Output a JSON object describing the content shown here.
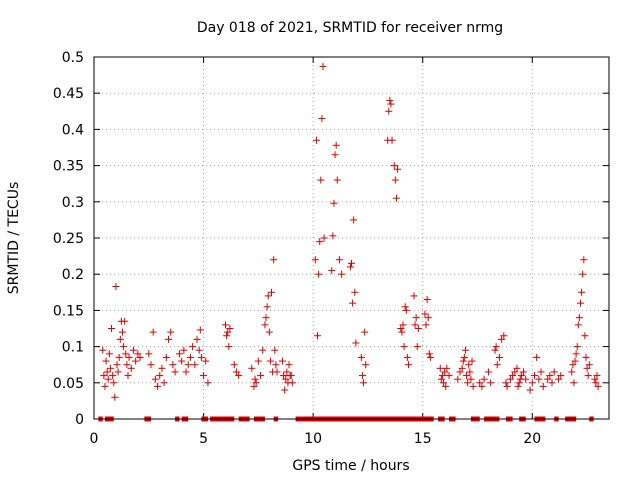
{
  "chart_data": {
    "type": "scatter",
    "title": "Day 018 of 2021, SRMTID for receiver nrmg",
    "xlabel": "GPS time / hours",
    "ylabel": "SRMTID / TECUs",
    "xlim": [
      0,
      23.5
    ],
    "ylim": [
      0,
      0.5
    ],
    "x_ticks": [
      0,
      5,
      10,
      15,
      20
    ],
    "x_tick_labels": [
      "0",
      "5",
      "10",
      "15",
      "20"
    ],
    "y_ticks": [
      0,
      0.05,
      0.1,
      0.15,
      0.2,
      0.25,
      0.3,
      0.35,
      0.4,
      0.45,
      0.5
    ],
    "y_tick_labels": [
      "0",
      "0.05",
      "0.1",
      "0.15",
      "0.2",
      "0.25",
      "0.3",
      "0.35",
      "0.4",
      "0.45",
      "0.5"
    ],
    "grid": true,
    "marker": "+",
    "marker_color": "#e00000",
    "series": [
      {
        "name": "SRMTID",
        "points": [
          [
            0.4,
            0.095
          ],
          [
            0.45,
            0.06
          ],
          [
            0.5,
            0.045
          ],
          [
            0.55,
            0.08
          ],
          [
            0.6,
            0.065
          ],
          [
            0.65,
            0.055
          ],
          [
            0.7,
            0.09
          ],
          [
            0.75,
            0.07
          ],
          [
            0.8,
            0.125
          ],
          [
            0.85,
            0.06
          ],
          [
            0.9,
            0.05
          ],
          [
            0.95,
            0.03
          ],
          [
            1.0,
            0.183
          ],
          [
            1.05,
            0.075
          ],
          [
            1.1,
            0.065
          ],
          [
            1.15,
            0.085
          ],
          [
            1.2,
            0.11
          ],
          [
            1.25,
            0.135
          ],
          [
            1.3,
            0.12
          ],
          [
            1.35,
            0.1
          ],
          [
            1.4,
            0.135
          ],
          [
            1.45,
            0.09
          ],
          [
            1.5,
            0.075
          ],
          [
            1.55,
            0.06
          ],
          [
            1.6,
            0.085
          ],
          [
            1.7,
            0.07
          ],
          [
            1.8,
            0.095
          ],
          [
            1.9,
            0.08
          ],
          [
            2.0,
            0.09
          ],
          [
            2.1,
            0.085
          ],
          [
            2.5,
            0.09
          ],
          [
            2.6,
            0.075
          ],
          [
            2.7,
            0.12
          ],
          [
            2.8,
            0.055
          ],
          [
            2.9,
            0.045
          ],
          [
            3.0,
            0.06
          ],
          [
            3.1,
            0.07
          ],
          [
            3.2,
            0.05
          ],
          [
            3.3,
            0.085
          ],
          [
            3.4,
            0.11
          ],
          [
            3.5,
            0.12
          ],
          [
            3.6,
            0.075
          ],
          [
            3.7,
            0.065
          ],
          [
            3.9,
            0.09
          ],
          [
            4.0,
            0.08
          ],
          [
            4.1,
            0.095
          ],
          [
            4.2,
            0.065
          ],
          [
            4.3,
            0.075
          ],
          [
            4.4,
            0.085
          ],
          [
            4.5,
            0.1
          ],
          [
            4.6,
            0.075
          ],
          [
            4.7,
            0.11
          ],
          [
            4.8,
            0.095
          ],
          [
            4.85,
            0.123
          ],
          [
            4.9,
            0.085
          ],
          [
            5.0,
            0.06
          ],
          [
            5.1,
            0.08
          ],
          [
            5.2,
            0.05
          ],
          [
            6.0,
            0.13
          ],
          [
            6.05,
            0.115
          ],
          [
            6.1,
            0.12
          ],
          [
            6.15,
            0.1
          ],
          [
            6.2,
            0.125
          ],
          [
            6.4,
            0.075
          ],
          [
            6.5,
            0.065
          ],
          [
            6.6,
            0.06
          ],
          [
            7.2,
            0.07
          ],
          [
            7.3,
            0.045
          ],
          [
            7.35,
            0.055
          ],
          [
            7.4,
            0.05
          ],
          [
            7.5,
            0.08
          ],
          [
            7.6,
            0.06
          ],
          [
            7.7,
            0.095
          ],
          [
            7.8,
            0.13
          ],
          [
            7.85,
            0.14
          ],
          [
            7.9,
            0.155
          ],
          [
            7.95,
            0.17
          ],
          [
            8.0,
            0.12
          ],
          [
            8.05,
            0.08
          ],
          [
            8.1,
            0.175
          ],
          [
            8.15,
            0.065
          ],
          [
            8.2,
            0.22
          ],
          [
            8.25,
            0.095
          ],
          [
            8.3,
            0.075
          ],
          [
            8.35,
            0.065
          ],
          [
            8.6,
            0.08
          ],
          [
            8.65,
            0.06
          ],
          [
            8.7,
            0.04
          ],
          [
            8.75,
            0.055
          ],
          [
            8.8,
            0.065
          ],
          [
            8.85,
            0.05
          ],
          [
            8.9,
            0.075
          ],
          [
            8.95,
            0.06
          ],
          [
            9.0,
            0.06
          ],
          [
            9.05,
            0.05
          ],
          [
            10.1,
            0.22
          ],
          [
            10.15,
            0.385
          ],
          [
            10.2,
            0.115
          ],
          [
            10.25,
            0.2
          ],
          [
            10.3,
            0.245
          ],
          [
            10.35,
            0.33
          ],
          [
            10.4,
            0.415
          ],
          [
            10.45,
            0.487
          ],
          [
            10.5,
            0.25
          ],
          [
            10.85,
            0.205
          ],
          [
            10.9,
            0.253
          ],
          [
            10.95,
            0.298
          ],
          [
            11.0,
            0.365
          ],
          [
            11.05,
            0.378
          ],
          [
            11.1,
            0.33
          ],
          [
            11.2,
            0.22
          ],
          [
            11.3,
            0.2
          ],
          [
            11.7,
            0.21
          ],
          [
            11.75,
            0.215
          ],
          [
            11.8,
            0.16
          ],
          [
            11.85,
            0.275
          ],
          [
            11.9,
            0.175
          ],
          [
            11.95,
            0.105
          ],
          [
            12.2,
            0.085
          ],
          [
            12.25,
            0.06
          ],
          [
            12.3,
            0.05
          ],
          [
            12.35,
            0.12
          ],
          [
            12.4,
            0.075
          ],
          [
            13.4,
            0.385
          ],
          [
            13.45,
            0.425
          ],
          [
            13.5,
            0.44
          ],
          [
            13.55,
            0.435
          ],
          [
            13.6,
            0.385
          ],
          [
            13.7,
            0.35
          ],
          [
            13.75,
            0.33
          ],
          [
            13.8,
            0.305
          ],
          [
            13.85,
            0.345
          ],
          [
            14.0,
            0.125
          ],
          [
            14.05,
            0.12
          ],
          [
            14.1,
            0.13
          ],
          [
            14.15,
            0.1
          ],
          [
            14.2,
            0.155
          ],
          [
            14.25,
            0.15
          ],
          [
            14.3,
            0.085
          ],
          [
            14.35,
            0.075
          ],
          [
            14.6,
            0.17
          ],
          [
            14.65,
            0.13
          ],
          [
            14.7,
            0.14
          ],
          [
            14.75,
            0.1
          ],
          [
            14.8,
            0.125
          ],
          [
            15.1,
            0.145
          ],
          [
            15.15,
            0.13
          ],
          [
            15.2,
            0.165
          ],
          [
            15.25,
            0.14
          ],
          [
            15.3,
            0.09
          ],
          [
            15.35,
            0.085
          ],
          [
            15.8,
            0.07
          ],
          [
            15.85,
            0.055
          ],
          [
            15.9,
            0.06
          ],
          [
            15.95,
            0.05
          ],
          [
            16.0,
            0.065
          ],
          [
            16.05,
            0.045
          ],
          [
            16.1,
            0.07
          ],
          [
            16.2,
            0.06
          ],
          [
            16.6,
            0.055
          ],
          [
            16.7,
            0.065
          ],
          [
            16.8,
            0.07
          ],
          [
            16.85,
            0.08
          ],
          [
            16.9,
            0.085
          ],
          [
            16.95,
            0.095
          ],
          [
            17.0,
            0.06
          ],
          [
            17.05,
            0.05
          ],
          [
            17.1,
            0.075
          ],
          [
            17.15,
            0.065
          ],
          [
            17.2,
            0.055
          ],
          [
            17.25,
            0.08
          ],
          [
            17.3,
            0.045
          ],
          [
            17.6,
            0.05
          ],
          [
            17.7,
            0.045
          ],
          [
            17.8,
            0.055
          ],
          [
            18.0,
            0.065
          ],
          [
            18.1,
            0.05
          ],
          [
            18.3,
            0.095
          ],
          [
            18.35,
            0.1
          ],
          [
            18.4,
            0.075
          ],
          [
            18.5,
            0.085
          ],
          [
            18.6,
            0.11
          ],
          [
            18.7,
            0.115
          ],
          [
            18.8,
            0.05
          ],
          [
            18.85,
            0.045
          ],
          [
            19.0,
            0.055
          ],
          [
            19.1,
            0.06
          ],
          [
            19.2,
            0.065
          ],
          [
            19.3,
            0.07
          ],
          [
            19.35,
            0.045
          ],
          [
            19.4,
            0.05
          ],
          [
            19.45,
            0.055
          ],
          [
            19.5,
            0.06
          ],
          [
            19.6,
            0.065
          ],
          [
            19.7,
            0.055
          ],
          [
            19.9,
            0.04
          ],
          [
            20.0,
            0.05
          ],
          [
            20.1,
            0.06
          ],
          [
            20.2,
            0.085
          ],
          [
            20.3,
            0.055
          ],
          [
            20.4,
            0.065
          ],
          [
            20.5,
            0.045
          ],
          [
            20.7,
            0.055
          ],
          [
            20.8,
            0.06
          ],
          [
            20.9,
            0.05
          ],
          [
            21.0,
            0.065
          ],
          [
            21.2,
            0.055
          ],
          [
            21.3,
            0.06
          ],
          [
            21.8,
            0.065
          ],
          [
            21.85,
            0.075
          ],
          [
            21.9,
            0.05
          ],
          [
            21.95,
            0.08
          ],
          [
            22.0,
            0.09
          ],
          [
            22.05,
            0.1
          ],
          [
            22.1,
            0.13
          ],
          [
            22.15,
            0.14
          ],
          [
            22.2,
            0.16
          ],
          [
            22.25,
            0.175
          ],
          [
            22.3,
            0.2
          ],
          [
            22.35,
            0.22
          ],
          [
            22.4,
            0.115
          ],
          [
            22.45,
            0.085
          ],
          [
            22.5,
            0.07
          ],
          [
            22.55,
            0.06
          ],
          [
            22.6,
            0.075
          ],
          [
            22.85,
            0.055
          ],
          [
            22.9,
            0.05
          ],
          [
            22.95,
            0.06
          ],
          [
            23.0,
            0.045
          ]
        ]
      },
      {
        "name": "zero",
        "x_ranges": [
          [
            0.2,
            0.4
          ],
          [
            0.5,
            0.9
          ],
          [
            2.3,
            2.6
          ],
          [
            3.7,
            3.9
          ],
          [
            4.0,
            4.3
          ],
          [
            4.9,
            5.2
          ],
          [
            5.3,
            6.4
          ],
          [
            6.6,
            7.1
          ],
          [
            7.3,
            7.8
          ],
          [
            8.2,
            8.4
          ],
          [
            9.2,
            15.5
          ],
          [
            15.7,
            16.0
          ],
          [
            16.2,
            16.5
          ],
          [
            17.2,
            17.6
          ],
          [
            17.8,
            18.5
          ],
          [
            18.8,
            19.1
          ],
          [
            19.4,
            19.7
          ],
          [
            20.1,
            20.6
          ],
          [
            21.0,
            21.2
          ],
          [
            21.5,
            22.0
          ],
          [
            22.6,
            22.8
          ]
        ],
        "value": 0
      }
    ]
  }
}
